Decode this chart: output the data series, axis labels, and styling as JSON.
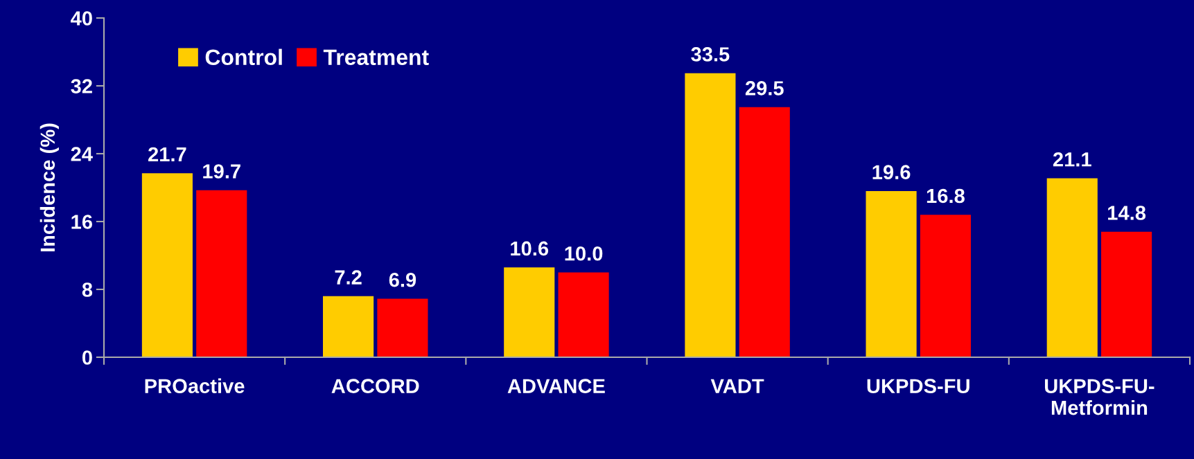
{
  "chart_data": {
    "type": "bar",
    "ylabel": "Incidence (%)",
    "categories": [
      "PROactive",
      "ACCORD",
      "ADVANCE",
      "VADT",
      "UKPDS-FU",
      "UKPDS-FU-\nMetformin"
    ],
    "series": [
      {
        "name": "Control",
        "color": "#ffcc00",
        "values": [
          21.7,
          7.2,
          10.6,
          33.5,
          19.6,
          21.1
        ],
        "value_labels": [
          "21.7",
          "7.2",
          "10.6",
          "33.5",
          "19.6",
          "21.1"
        ]
      },
      {
        "name": "Treatment",
        "color": "#ff0000",
        "values": [
          19.7,
          6.9,
          10.0,
          29.5,
          16.8,
          14.8
        ],
        "value_labels": [
          "19.7",
          "6.9",
          "10.0",
          "29.5",
          "16.8",
          "14.8"
        ]
      }
    ],
    "ylim": [
      0,
      40
    ],
    "yticks": [
      0,
      8,
      16,
      24,
      32,
      40
    ],
    "grid": false,
    "legend": "top left"
  }
}
